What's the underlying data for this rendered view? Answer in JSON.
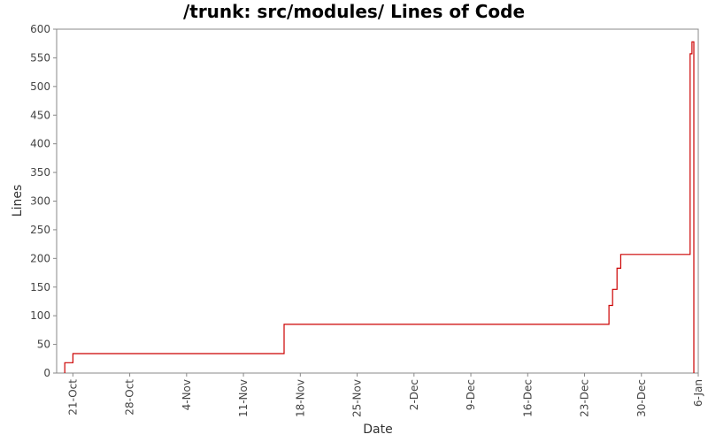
{
  "chart_data": {
    "type": "line",
    "title": "/trunk: src/modules/ Lines of Code",
    "xlabel": "Date",
    "ylabel": "Lines",
    "ylim": [
      0,
      600
    ],
    "yticks": [
      0,
      50,
      100,
      150,
      200,
      250,
      300,
      350,
      400,
      450,
      500,
      550,
      600
    ],
    "xlim": [
      "2012-10-19",
      "2013-01-06"
    ],
    "xticks": [
      {
        "label": "21-Oct",
        "date": "2012-10-21"
      },
      {
        "label": "28-Oct",
        "date": "2012-10-28"
      },
      {
        "label": "4-Nov",
        "date": "2012-11-04"
      },
      {
        "label": "11-Nov",
        "date": "2012-11-11"
      },
      {
        "label": "18-Nov",
        "date": "2012-11-18"
      },
      {
        "label": "25-Nov",
        "date": "2012-11-25"
      },
      {
        "label": "2-Dec",
        "date": "2012-12-02"
      },
      {
        "label": "9-Dec",
        "date": "2012-12-09"
      },
      {
        "label": "16-Dec",
        "date": "2012-12-16"
      },
      {
        "label": "23-Dec",
        "date": "2012-12-23"
      },
      {
        "label": "30-Dec",
        "date": "2012-12-30"
      },
      {
        "label": "6-Jan",
        "date": "2013-01-06"
      }
    ],
    "grid": false,
    "legend": "none",
    "series": [
      {
        "color": "#cc0000",
        "step": true,
        "x": [
          "2012-10-20",
          "2012-10-21",
          "2012-11-16",
          "2012-12-26",
          "2012-12-26",
          "2012-12-27",
          "2012-12-27",
          "2013-01-05",
          "2013-01-05",
          "2013-01-05"
        ],
        "y": [
          18,
          34,
          85,
          118,
          146,
          183,
          207,
          557,
          578,
          0
        ]
      }
    ]
  }
}
